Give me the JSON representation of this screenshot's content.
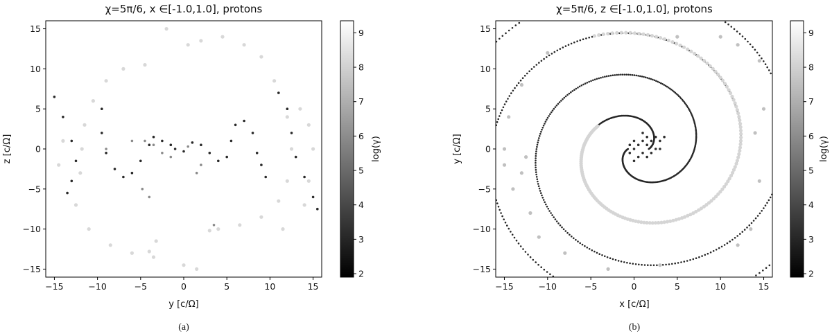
{
  "panels": [
    {
      "caption": "(a)",
      "title": "χ=5π/6, x ∈[-1.0,1.0], protons",
      "xlabel": "y [c/Ω]",
      "ylabel": "z [c/Ω]"
    },
    {
      "caption": "(b)",
      "title": "χ=5π/6, z ∈[-1.0,1.0], protons",
      "xlabel": "x [c/Ω]",
      "ylabel": "y [c/Ω]"
    }
  ],
  "colorbar": {
    "label": "log(γ)",
    "ticks": [
      "2",
      "3",
      "4",
      "5",
      "6",
      "7",
      "8",
      "9"
    ],
    "range": [
      1.9,
      9.35
    ],
    "colors": {
      "low": "#000000",
      "high": "#ffffff"
    }
  },
  "chart_data": [
    {
      "type": "scatter",
      "title": "χ=5π/6, x ∈[-1.0,1.0], protons",
      "xlabel": "y [c/Ω]",
      "ylabel": "z [c/Ω]",
      "xlim": [
        -16,
        16
      ],
      "ylim": [
        -16,
        16
      ],
      "xticks": [
        "−15",
        "−10",
        "−5",
        "0",
        "5",
        "10",
        "15"
      ],
      "yticks": [
        "−15",
        "−10",
        "−5",
        "0",
        "5",
        "10",
        "15"
      ],
      "color_variable": "log(γ)",
      "series": [
        {
          "shape": "outer arcs (high energy)",
          "log_gamma": 8.9,
          "points": [
            [
              -12,
              -3
            ],
            [
              -11.8,
              0
            ],
            [
              -11.5,
              3
            ],
            [
              -10.5,
              6
            ],
            [
              -9,
              8.5
            ],
            [
              -7,
              10
            ],
            [
              -4.5,
              10.5
            ],
            [
              -14.5,
              -2
            ],
            [
              -14,
              1
            ],
            [
              -12.5,
              -7
            ],
            [
              -11,
              -10
            ],
            [
              -8.5,
              -12
            ],
            [
              -6,
              -13
            ],
            [
              -3.5,
              -13.5
            ],
            [
              0,
              -14.5
            ],
            [
              1.5,
              -15
            ],
            [
              2,
              13.5
            ],
            [
              4.5,
              14
            ],
            [
              7,
              13
            ],
            [
              9,
              11.5
            ],
            [
              10.5,
              8.5
            ],
            [
              12,
              4
            ],
            [
              12.5,
              0
            ],
            [
              12,
              -4
            ],
            [
              11,
              -6.5
            ],
            [
              9,
              -8.5
            ],
            [
              6.5,
              -9.5
            ],
            [
              4,
              -10
            ],
            [
              3,
              -10.2
            ],
            [
              15,
              0
            ],
            [
              14.5,
              -4
            ],
            [
              14,
              -7
            ],
            [
              11.5,
              -10
            ],
            [
              13.5,
              5
            ],
            [
              14.5,
              3
            ],
            [
              -3.2,
              -11.5
            ],
            [
              -4,
              -12.8
            ],
            [
              -2,
              15
            ],
            [
              0.5,
              13
            ]
          ]
        },
        {
          "shape": "inner dark loops (low energy)",
          "log_gamma": 2.4,
          "points": [
            [
              -15,
              6.5
            ],
            [
              -14,
              4
            ],
            [
              -13,
              1
            ],
            [
              -12.5,
              -1.5
            ],
            [
              -13,
              -4
            ],
            [
              -13.5,
              -5.5
            ],
            [
              -9.5,
              5
            ],
            [
              -9.5,
              2
            ],
            [
              -9,
              -0.5
            ],
            [
              -8,
              -2.5
            ],
            [
              -7,
              -3.5
            ],
            [
              -6,
              -3
            ],
            [
              -5,
              -1.5
            ],
            [
              -4,
              0.5
            ],
            [
              -3.5,
              1.5
            ],
            [
              -2.5,
              1
            ],
            [
              -1.5,
              0.5
            ],
            [
              -1,
              0
            ],
            [
              0,
              -0.3
            ],
            [
              1,
              0.8
            ],
            [
              2,
              0.5
            ],
            [
              3,
              -0.5
            ],
            [
              4,
              -1.5
            ],
            [
              5,
              -1
            ],
            [
              5.5,
              1
            ],
            [
              6,
              3
            ],
            [
              7,
              3.5
            ],
            [
              8,
              2
            ],
            [
              8.5,
              -0.5
            ],
            [
              9,
              -2
            ],
            [
              9.5,
              -3.5
            ],
            [
              11,
              7
            ],
            [
              12,
              5
            ],
            [
              12.5,
              2
            ],
            [
              13,
              -1
            ],
            [
              14,
              -3.5
            ],
            [
              15,
              -6
            ],
            [
              15.5,
              -7.5
            ]
          ]
        },
        {
          "shape": "scattered mid energy",
          "log_gamma": 6.0,
          "points": [
            [
              -4.5,
              1
            ],
            [
              -3.5,
              0.5
            ],
            [
              -2.5,
              -0.5
            ],
            [
              0.5,
              0.3
            ],
            [
              -9,
              0
            ],
            [
              -6,
              1
            ],
            [
              1.5,
              -3
            ],
            [
              -4.8,
              -5
            ],
            [
              -4,
              -6
            ],
            [
              2,
              -2
            ],
            [
              3.5,
              -9.5
            ],
            [
              -1.5,
              -1
            ]
          ]
        }
      ]
    },
    {
      "type": "scatter",
      "title": "χ=5π/6, z ∈[-1.0,1.0], protons",
      "xlabel": "x [c/Ω]",
      "ylabel": "y [c/Ω]",
      "xlim": [
        -16,
        16
      ],
      "ylim": [
        -16,
        16
      ],
      "xticks": [
        "−15",
        "−10",
        "−5",
        "0",
        "5",
        "10",
        "15"
      ],
      "yticks": [
        "−15",
        "−10",
        "−5",
        "0",
        "5",
        "10",
        "15"
      ],
      "color_variable": "log(γ)",
      "series": [
        {
          "shape": "spiral arm A (low energy)",
          "log_gamma": 2.3,
          "spiral": {
            "r_start": 1.2,
            "r_end": 22,
            "theta_start": 0,
            "theta_end": 12.4,
            "points": 520
          }
        },
        {
          "shape": "spiral arm B (low energy)",
          "log_gamma": 2.3,
          "spiral": {
            "r_start": 1.2,
            "r_end": 22,
            "theta_start": 3.14,
            "theta_end": 15.5,
            "points": 520
          }
        },
        {
          "shape": "core blob",
          "log_gamma": 2.6,
          "points": [
            [
              0,
              0
            ],
            [
              0.5,
              0.5
            ],
            [
              1,
              1
            ],
            [
              1.5,
              1.5
            ],
            [
              1.5,
              0.5
            ],
            [
              2,
              1
            ],
            [
              2.5,
              1.5
            ],
            [
              1,
              -0.5
            ],
            [
              0.5,
              -1
            ],
            [
              2,
              -0.5
            ],
            [
              -0.5,
              0.5
            ],
            [
              0,
              1
            ],
            [
              1,
              2
            ],
            [
              2.5,
              0
            ],
            [
              3,
              1
            ],
            [
              3.5,
              1.5
            ],
            [
              -0.5,
              -0.5
            ],
            [
              1.5,
              -1
            ],
            [
              0,
              -1.5
            ],
            [
              3,
              0
            ]
          ]
        },
        {
          "shape": "high-energy arc",
          "log_gamma": 8.8,
          "spiral": {
            "r_start": 5.5,
            "r_end": 15,
            "theta_start": 2.6,
            "theta_end": 8.2,
            "points": 160
          }
        },
        {
          "shape": "scattered high energy",
          "log_gamma": 8.0,
          "points": [
            [
              -14.5,
              4
            ],
            [
              -14,
              -5
            ],
            [
              -13,
              8
            ],
            [
              -12,
              -8
            ],
            [
              14,
              2
            ],
            [
              14.5,
              -4
            ],
            [
              15,
              5
            ],
            [
              14.5,
              11
            ],
            [
              13.5,
              -10
            ],
            [
              12,
              -12
            ],
            [
              -10,
              12
            ],
            [
              -8,
              -13
            ],
            [
              5,
              14
            ],
            [
              -3,
              -15
            ],
            [
              10,
              14
            ],
            [
              -15,
              -2
            ],
            [
              16,
              -1
            ],
            [
              -12.5,
              -1
            ],
            [
              -13,
              -3
            ],
            [
              -11,
              -11
            ],
            [
              3,
              -14.5
            ],
            [
              12,
              13
            ],
            [
              -15,
              0
            ]
          ]
        }
      ]
    }
  ]
}
